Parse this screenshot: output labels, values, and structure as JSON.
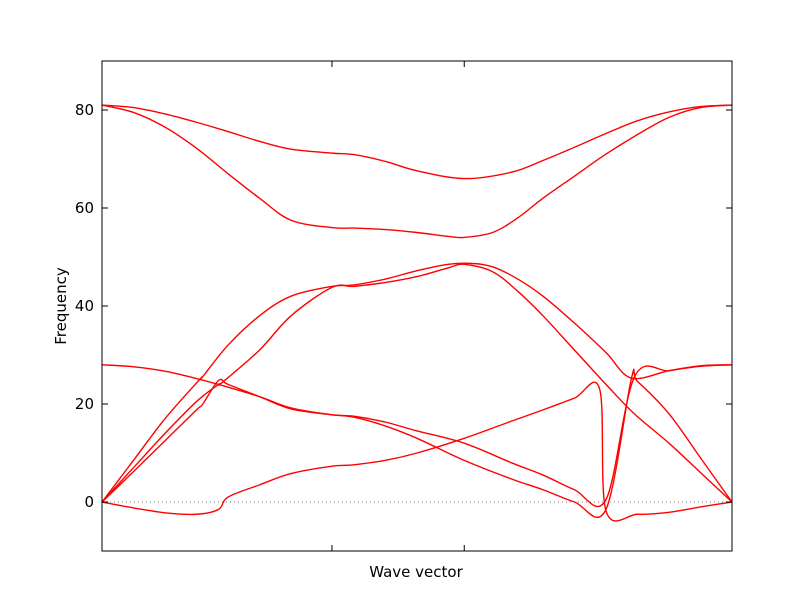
{
  "chart_data": {
    "type": "line",
    "title": "",
    "xlabel": "Wave vector",
    "ylabel": "Frequency",
    "xlim": [
      0,
      1
    ],
    "ylim": [
      -10,
      90
    ],
    "yticks": [
      0,
      20,
      40,
      60,
      80
    ],
    "xticks": [
      0.365,
      0.575
    ],
    "xtick_labels": [
      "",
      ""
    ],
    "grid": false,
    "line_color": "#ff0000",
    "zero_line": {
      "y": 0,
      "style": "dotted",
      "color": "#808080"
    },
    "series": [
      {
        "x": [
          0.0,
          0.05,
          0.1,
          0.15,
          0.2,
          0.25,
          0.3,
          0.365,
          0.4,
          0.45,
          0.5,
          0.575,
          0.65,
          0.7,
          0.75,
          0.8,
          0.85,
          0.9,
          0.95,
          1.0
        ],
        "y": [
          81.0,
          80.5,
          79.2,
          77.5,
          75.6,
          73.6,
          72.0,
          71.2,
          70.9,
          69.5,
          67.6,
          66.0,
          67.3,
          69.7,
          72.4,
          75.2,
          77.8,
          79.6,
          80.7,
          81.0
        ]
      },
      {
        "x": [
          0.0,
          0.05,
          0.1,
          0.15,
          0.2,
          0.25,
          0.3,
          0.365,
          0.4,
          0.45,
          0.5,
          0.55,
          0.575,
          0.62,
          0.66,
          0.7,
          0.75,
          0.8,
          0.85,
          0.9,
          0.95,
          1.0
        ],
        "y": [
          81.0,
          79.5,
          76.5,
          72.2,
          67.0,
          62.0,
          57.5,
          56.0,
          55.9,
          55.6,
          55.0,
          54.2,
          54.0,
          55.0,
          58.0,
          62.0,
          66.5,
          71.0,
          75.0,
          78.5,
          80.5,
          81.0
        ]
      },
      {
        "x": [
          0.0,
          0.05,
          0.1,
          0.155,
          0.16,
          0.2,
          0.25,
          0.3,
          0.365,
          0.4,
          0.45,
          0.5,
          0.55,
          0.585,
          0.62,
          0.66,
          0.7,
          0.75,
          0.8,
          0.84,
          0.9,
          0.95,
          1.0
        ],
        "y": [
          0.0,
          8.5,
          17.0,
          25.0,
          25.6,
          32.0,
          38.0,
          42.0,
          44.0,
          44.3,
          45.5,
          47.2,
          48.5,
          48.7,
          48.0,
          45.5,
          42.0,
          36.5,
          30.5,
          25.3,
          26.8,
          27.8,
          28.0
        ]
      },
      {
        "x": [
          0.0,
          0.05,
          0.1,
          0.15,
          0.185,
          0.19,
          0.25,
          0.3,
          0.365,
          0.4,
          0.45,
          0.5,
          0.55,
          0.575,
          0.62,
          0.66,
          0.7,
          0.75,
          0.8,
          0.845,
          0.9,
          0.95,
          1.0
        ],
        "y": [
          0.0,
          7.0,
          14.0,
          20.5,
          24.0,
          24.3,
          31.0,
          38.0,
          43.8,
          44.0,
          44.8,
          46.0,
          47.8,
          48.5,
          47.0,
          43.0,
          38.0,
          31.0,
          24.0,
          18.0,
          12.0,
          6.0,
          0.0
        ]
      },
      {
        "x": [
          0.0,
          0.05,
          0.1,
          0.15,
          0.16,
          0.185,
          0.2,
          0.25,
          0.3,
          0.365,
          0.4,
          0.45,
          0.5,
          0.575,
          0.65,
          0.7,
          0.75,
          0.8,
          0.84,
          0.85,
          0.9,
          0.95,
          1.0
        ],
        "y": [
          0.0,
          6.2,
          12.5,
          18.8,
          20.0,
          24.8,
          24.0,
          21.5,
          19.0,
          17.8,
          17.3,
          15.5,
          13.0,
          8.5,
          4.7,
          2.5,
          0.0,
          -1.5,
          25.0,
          24.6,
          18.0,
          9.0,
          0.0
        ]
      },
      {
        "x": [
          0.0,
          0.05,
          0.1,
          0.15,
          0.19,
          0.25,
          0.3,
          0.365,
          0.4,
          0.45,
          0.5,
          0.575,
          0.65,
          0.7,
          0.75,
          0.8,
          0.845,
          0.9,
          0.95,
          1.0
        ],
        "y": [
          28.0,
          27.6,
          26.7,
          25.2,
          23.8,
          21.5,
          19.2,
          17.8,
          17.5,
          16.3,
          14.5,
          12.0,
          8.0,
          5.5,
          2.5,
          0.5,
          25.5,
          26.8,
          27.7,
          28.0
        ]
      },
      {
        "x": [
          0.0,
          0.05,
          0.1,
          0.15,
          0.185,
          0.2,
          0.25,
          0.3,
          0.365,
          0.4,
          0.45,
          0.5,
          0.575,
          0.65,
          0.7,
          0.75,
          0.79,
          0.8,
          0.85,
          0.9,
          0.95,
          1.0
        ],
        "y": [
          0.0,
          -1.2,
          -2.2,
          -2.5,
          -1.5,
          1.0,
          3.5,
          5.8,
          7.3,
          7.6,
          8.5,
          10.0,
          13.0,
          16.5,
          18.8,
          21.2,
          23.0,
          -1.8,
          -2.5,
          -2.1,
          -1.0,
          0.0
        ]
      }
    ]
  }
}
